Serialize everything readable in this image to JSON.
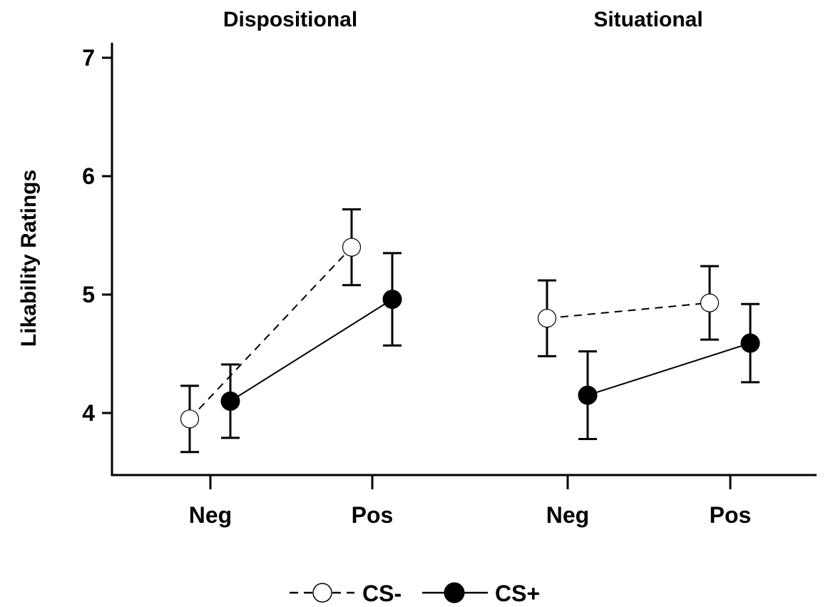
{
  "chart_data": {
    "type": "line",
    "ylabel": "Likability Ratings",
    "ylim": [
      3.5,
      7.15
    ],
    "yticks": [
      4,
      5,
      6,
      7
    ],
    "grid": false,
    "legend_position": "bottom-center",
    "categories": [
      "Neg",
      "Pos"
    ],
    "panels": [
      {
        "title": "Dispositional",
        "series": [
          {
            "name": "CS-",
            "values": [
              3.95,
              5.4
            ],
            "error": [
              0.28,
              0.32
            ]
          },
          {
            "name": "CS+",
            "values": [
              4.1,
              4.96
            ],
            "error": [
              0.31,
              0.39
            ]
          }
        ]
      },
      {
        "title": "Situational",
        "series": [
          {
            "name": "CS-",
            "values": [
              4.8,
              4.93
            ],
            "error": [
              0.32,
              0.31
            ]
          },
          {
            "name": "CS+",
            "values": [
              4.15,
              4.59
            ],
            "error": [
              0.37,
              0.33
            ]
          }
        ]
      }
    ],
    "series_styles": [
      {
        "name": "CS-",
        "line": "dashed",
        "marker": "open-circle",
        "color": "#000000"
      },
      {
        "name": "CS+",
        "line": "solid",
        "marker": "filled-circle",
        "color": "#000000"
      }
    ]
  }
}
